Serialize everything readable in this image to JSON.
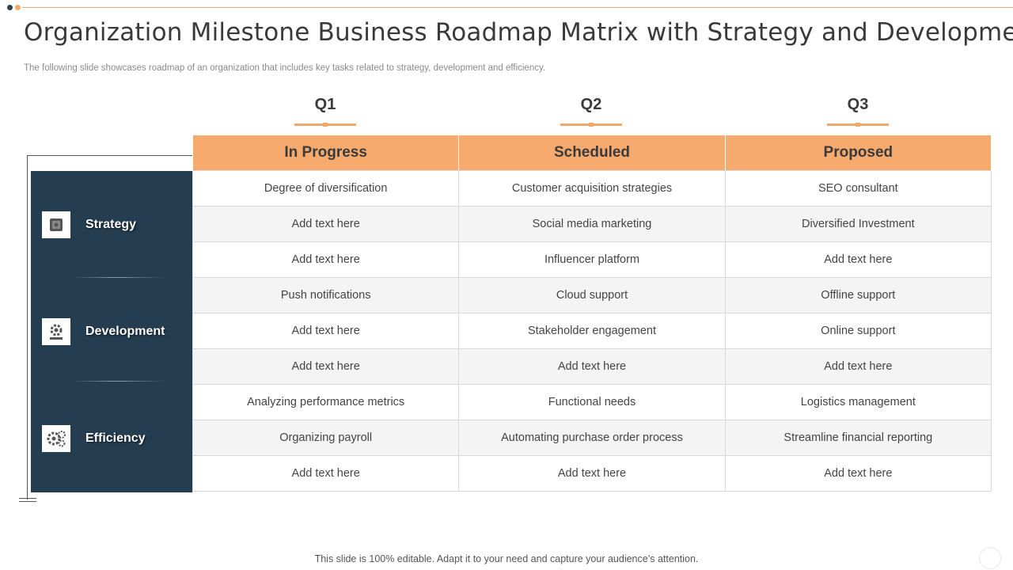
{
  "title": "Organization Milestone Business Roadmap Matrix with Strategy and Development",
  "subtitle": "The following slide showcases roadmap of an organization that includes key tasks related to strategy,  development and efficiency.",
  "quarters": [
    "Q1",
    "Q2",
    "Q3"
  ],
  "columns": [
    "In Progress",
    "Scheduled",
    "Proposed"
  ],
  "categories": [
    {
      "label": "Strategy",
      "icon": "strategy-icon"
    },
    {
      "label": "Development",
      "icon": "development-gear-icon"
    },
    {
      "label": "Efficiency",
      "icon": "efficiency-gears-icon"
    }
  ],
  "rows": [
    [
      "Degree of diversification",
      "Customer acquisition strategies",
      "SEO consultant"
    ],
    [
      "Add text here",
      "Social media marketing",
      "Diversified Investment"
    ],
    [
      "Add text here",
      "Influencer platform",
      "Add text here"
    ],
    [
      "Push notifications",
      "Cloud support",
      "Offline support"
    ],
    [
      "Add text here",
      "Stakeholder engagement",
      "Online support"
    ],
    [
      "Add text here",
      "Add text here",
      "Add text here"
    ],
    [
      "Analyzing  performance metrics",
      "Functional needs",
      "Logistics management"
    ],
    [
      "Organizing payroll",
      "Automating purchase order process",
      "Streamline financial reporting"
    ],
    [
      "Add text here",
      "Add text here",
      "Add text here"
    ]
  ],
  "footer": "This slide is 100% editable. Adapt it to your need and capture your audience’s attention.",
  "colors": {
    "accent": "#f6aa6e",
    "panel": "#253d50",
    "alt_row": "#f4f4f4"
  }
}
